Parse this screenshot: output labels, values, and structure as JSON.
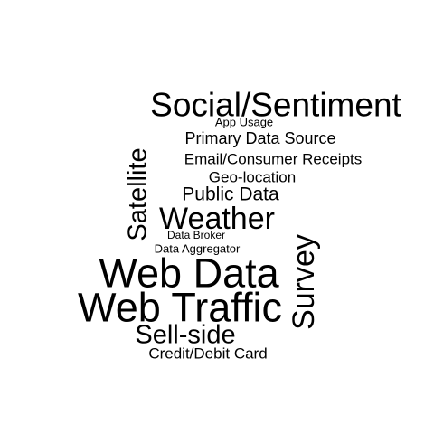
{
  "word_cloud": {
    "words": {
      "social_sentiment": "Social/Sentiment",
      "app_usage": "App Usage",
      "primary_data_source": "Primary Data Source",
      "email_consumer_receipts": "Email/Consumer Receipts",
      "geo_location": "Geo-location",
      "public_data": "Public Data",
      "satellite": "Satellite",
      "weather": "Weather",
      "data_broker": "Data Broker",
      "data_aggregator": "Data Aggregator",
      "survey": "Survey",
      "web_data": "Web Data",
      "web_traffic": "Web Traffic",
      "sell_side": "Sell-side",
      "credit_debit_card": "Credit/Debit Card"
    },
    "colors": {
      "background": "#ffffff",
      "text": "#000000"
    }
  }
}
